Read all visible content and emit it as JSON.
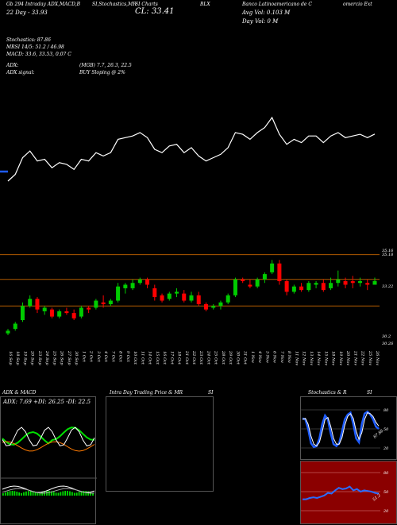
{
  "header": {
    "line1_left": "Gb 294 Intraday ADX,MACD,B",
    "line1_mid": "SI,Stochastics,MR",
    "line1_mid2": "SI Charts",
    "line1_sym": "BLX",
    "line1_right": "Banco Latinoamericano de C",
    "line1_right2": "omercio Ext",
    "line2_left": "22 Day - 33.93",
    "line2_close": "CL: 33.41",
    "line2_avg": "Avg Vol: 0.103 M",
    "line3_day": "Day Vol: 0   M",
    "stoch": "Stochastics: 87.86",
    "mrsi": "MRSI 14/5: 51.2 / 46.98",
    "macd": "MACD: 33.6, 33.53, 0.07 C",
    "adx_label": "ADX:",
    "adx_vals": "(MGB) 7.7, 26.3, 22.5",
    "adx_signal_label": "ADX signal:",
    "adx_signal": "BUY Sloping @ 2%"
  },
  "price_axis": [
    "35.16",
    "35.18",
    "33.22",
    "30.2",
    "30.26"
  ],
  "dates": [
    "16 Sep",
    "18 Sep",
    "19 Sep",
    "20 Sep",
    "23 Sep",
    "24 Sep",
    "25 Sep",
    "26 Sep",
    "27 Sep",
    "30 Sep",
    "1 Oct",
    "2 Oct",
    "3 Oct",
    "4 Oct",
    "7 Oct",
    "8 Oct",
    "9 Oct",
    "10 Oct",
    "11 Oct",
    "14 Oct",
    "15 Oct",
    "16 Oct",
    "17 Oct",
    "18 Oct",
    "21 Oct",
    "22 Oct",
    "23 Oct",
    "24 Oct",
    "25 Oct",
    "28 Oct",
    "29 Oct",
    "30 Oct",
    "31 Oct",
    "1 Nov",
    "4 Nov",
    "5 Nov",
    "6 Nov",
    "7 Nov",
    "8 Nov",
    "11 Nov",
    "12 Nov",
    "13 Nov",
    "14 Nov",
    "15 Nov",
    "18 Nov",
    "19 Nov",
    "20 Nov",
    "21 Nov",
    "22 Nov",
    "25 Nov",
    "26 Nov"
  ],
  "panels": {
    "adx_title": "ADX  & MACD",
    "adx_readout": "ADX: 7.69  +DI: 26.25  -DI: 22.5",
    "intraday_title": "Intra  Day Trading Price  & MR",
    "intraday_title2": "SI",
    "stoch_title": "Stochastics & R",
    "stoch_title2": "SI",
    "stoch_ticks": [
      "80",
      "50",
      "20"
    ],
    "stoch_value": "87.86",
    "rsi_ticks": [
      "80",
      "50",
      "20"
    ],
    "rsi_value": "51.2"
  },
  "colors": {
    "ma_line": "#1e5cff",
    "price_line": "#ffffff",
    "up": "#00cc00",
    "down": "#ff0000",
    "rsi_bg": "#8b0000",
    "ref_line": "#b05a00"
  },
  "chart_data": {
    "type": "candlestick",
    "title": "",
    "categories": [
      "16 Sep",
      "18 Sep",
      "19 Sep",
      "20 Sep",
      "23 Sep",
      "24 Sep",
      "25 Sep",
      "26 Sep",
      "27 Sep",
      "30 Sep",
      "1 Oct",
      "2 Oct",
      "3 Oct",
      "4 Oct",
      "7 Oct",
      "8 Oct",
      "9 Oct",
      "10 Oct",
      "11 Oct",
      "14 Oct",
      "15 Oct",
      "16 Oct",
      "17 Oct",
      "18 Oct",
      "21 Oct",
      "22 Oct",
      "23 Oct",
      "24 Oct",
      "25 Oct",
      "28 Oct",
      "29 Oct",
      "30 Oct",
      "31 Oct",
      "1 Nov",
      "4 Nov",
      "5 Nov",
      "6 Nov",
      "7 Nov",
      "8 Nov",
      "11 Nov",
      "12 Nov",
      "13 Nov",
      "14 Nov",
      "15 Nov",
      "18 Nov",
      "19 Nov",
      "20 Nov",
      "21 Nov",
      "22 Nov",
      "25 Nov",
      "26 Nov"
    ],
    "ohlc": [
      [
        30.45,
        30.7,
        30.35,
        30.6
      ],
      [
        30.7,
        31.1,
        30.6,
        31.0
      ],
      [
        31.2,
        32.2,
        31.1,
        32.0
      ],
      [
        32.0,
        32.6,
        31.9,
        32.4
      ],
      [
        32.4,
        32.5,
        31.6,
        31.8
      ],
      [
        31.7,
        32.0,
        31.5,
        31.9
      ],
      [
        31.8,
        31.9,
        31.3,
        31.4
      ],
      [
        31.4,
        31.8,
        31.3,
        31.7
      ],
      [
        31.7,
        31.9,
        31.5,
        31.6
      ],
      [
        31.6,
        31.8,
        31.2,
        31.3
      ],
      [
        31.4,
        32.0,
        31.3,
        31.9
      ],
      [
        31.9,
        32.0,
        31.6,
        31.8
      ],
      [
        31.9,
        32.4,
        31.8,
        32.3
      ],
      [
        32.2,
        32.6,
        31.9,
        32.1
      ],
      [
        32.1,
        32.4,
        32.0,
        32.3
      ],
      [
        32.3,
        33.3,
        32.2,
        33.1
      ],
      [
        33.0,
        33.3,
        32.7,
        33.2
      ],
      [
        33.0,
        33.5,
        32.9,
        33.3
      ],
      [
        33.3,
        33.6,
        33.2,
        33.5
      ],
      [
        33.5,
        33.6,
        33.0,
        33.2
      ],
      [
        33.0,
        33.2,
        32.3,
        32.5
      ],
      [
        32.6,
        32.7,
        32.2,
        32.3
      ],
      [
        32.4,
        32.8,
        32.3,
        32.7
      ],
      [
        32.7,
        33.0,
        32.5,
        32.8
      ],
      [
        32.7,
        32.9,
        32.2,
        32.3
      ],
      [
        32.3,
        32.8,
        32.2,
        32.6
      ],
      [
        32.6,
        32.8,
        32.0,
        32.1
      ],
      [
        32.1,
        32.2,
        31.7,
        31.8
      ],
      [
        31.9,
        32.1,
        31.8,
        32.0
      ],
      [
        32.0,
        32.3,
        31.8,
        32.2
      ],
      [
        32.2,
        32.7,
        32.1,
        32.6
      ],
      [
        32.6,
        33.6,
        32.5,
        33.5
      ],
      [
        33.5,
        33.6,
        33.3,
        33.4
      ],
      [
        33.2,
        33.5,
        33.0,
        33.1
      ],
      [
        33.1,
        33.6,
        33.0,
        33.5
      ],
      [
        33.5,
        33.9,
        33.3,
        33.8
      ],
      [
        33.9,
        34.6,
        33.8,
        34.4
      ],
      [
        34.4,
        34.6,
        33.2,
        33.4
      ],
      [
        33.4,
        33.5,
        32.6,
        32.8
      ],
      [
        32.8,
        33.2,
        32.7,
        33.1
      ],
      [
        33.1,
        33.3,
        32.8,
        32.9
      ],
      [
        32.9,
        33.4,
        32.8,
        33.3
      ],
      [
        33.2,
        33.4,
        33.0,
        33.3
      ],
      [
        33.3,
        33.5,
        32.8,
        32.9
      ],
      [
        33.0,
        33.6,
        32.9,
        33.3
      ],
      [
        33.3,
        34.0,
        33.1,
        33.5
      ],
      [
        33.4,
        33.6,
        33.0,
        33.2
      ],
      [
        33.4,
        33.7,
        33.0,
        33.3
      ],
      [
        33.3,
        33.6,
        33.1,
        33.4
      ],
      [
        33.3,
        33.5,
        32.9,
        33.2
      ],
      [
        33.2,
        33.6,
        33.2,
        33.41
      ]
    ],
    "reference_levels": [
      34.9,
      33.5,
      32.0
    ]
  }
}
